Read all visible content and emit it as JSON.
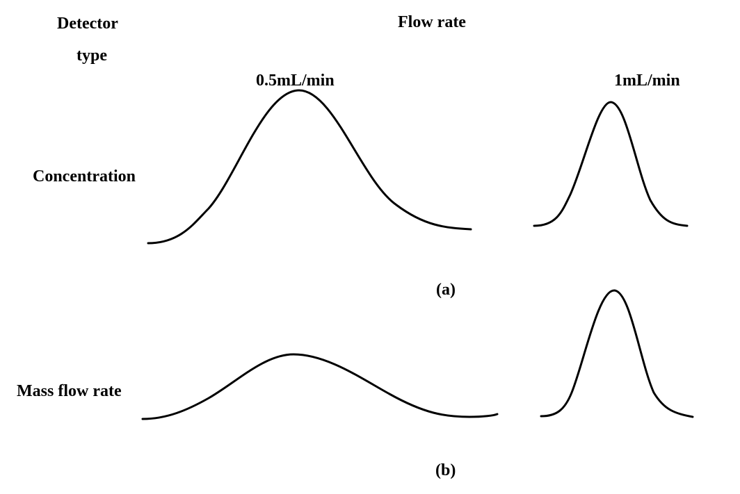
{
  "header": {
    "detector_line1": "Detector",
    "detector_line2": "type",
    "flow_rate": "Flow rate",
    "rate_left": "0.5mL/min",
    "rate_right": "1mL/min"
  },
  "rows": [
    {
      "label": "Concentration",
      "caption": "(a)"
    },
    {
      "label": "Mass flow rate",
      "caption": "(b)"
    }
  ],
  "colors": {
    "stroke": "#000000",
    "background": "#ffffff"
  }
}
